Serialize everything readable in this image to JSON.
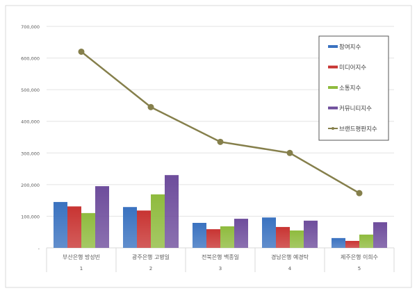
{
  "chart_data": {
    "type": "bar+line",
    "title": "",
    "categories": [
      "부산은행 방성빈",
      "광주은행 고병일",
      "전북은행 백종일",
      "경남은행 예경탁",
      "제주은행 이희수"
    ],
    "ranks": [
      "1",
      "2",
      "3",
      "4",
      "5"
    ],
    "ylim": [
      0,
      700000
    ],
    "yticks": [
      0,
      100000,
      200000,
      300000,
      400000,
      500000,
      600000,
      700000
    ],
    "ytick_labels": [
      "-",
      "100,000",
      "200,000",
      "300,000",
      "400,000",
      "500,000",
      "600,000",
      "700,000"
    ],
    "grid": true,
    "legend_position": "top-right",
    "series": [
      {
        "name": "참여지수",
        "type": "bar",
        "color": "#3a72c0",
        "values": [
          145000,
          129000,
          79000,
          96000,
          31000
        ]
      },
      {
        "name": "미디어지수",
        "type": "bar",
        "color": "#c83432",
        "values": [
          131000,
          118000,
          59000,
          66000,
          22000
        ]
      },
      {
        "name": "소통지수",
        "type": "bar",
        "color": "#8fbb3e",
        "values": [
          110000,
          169000,
          68000,
          55000,
          42000
        ]
      },
      {
        "name": "커뮤니티지수",
        "type": "bar",
        "color": "#6e4d9c",
        "values": [
          195000,
          230000,
          92000,
          86000,
          81000
        ]
      },
      {
        "name": "브랜드평판지수",
        "type": "line",
        "color": "#857f4b",
        "values": [
          620000,
          445000,
          335000,
          300000,
          173000
        ]
      }
    ]
  }
}
